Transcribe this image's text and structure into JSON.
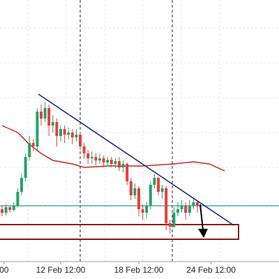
{
  "chart_data": {
    "type": "candlestick",
    "categories": [
      null,
      null,
      null,
      null,
      null,
      null,
      null,
      null,
      null,
      null,
      null,
      null,
      null,
      null,
      null,
      null,
      null,
      null,
      null,
      null,
      null,
      null,
      null,
      null,
      null,
      null,
      null,
      null,
      null,
      null,
      null,
      null,
      null,
      null,
      null,
      null,
      null,
      null,
      null,
      null,
      null,
      null,
      null,
      null,
      null,
      null,
      null,
      null,
      null,
      null,
      null
    ],
    "open": [
      75,
      70,
      78,
      74,
      80,
      100,
      120,
      150,
      170,
      165,
      215,
      205,
      220,
      195,
      200,
      180,
      190,
      182,
      185,
      178,
      182,
      165,
      155,
      148,
      150,
      145,
      148,
      142,
      146,
      140,
      144,
      135,
      140,
      115,
      95,
      105,
      75,
      70,
      80,
      110,
      120,
      100,
      105,
      55,
      50,
      70,
      75,
      80,
      70,
      80,
      85
    ],
    "close": [
      70,
      78,
      74,
      80,
      100,
      120,
      150,
      170,
      165,
      215,
      205,
      220,
      195,
      200,
      180,
      190,
      182,
      185,
      178,
      182,
      165,
      155,
      148,
      150,
      145,
      148,
      142,
      146,
      140,
      144,
      135,
      140,
      115,
      95,
      105,
      75,
      70,
      80,
      110,
      120,
      100,
      105,
      55,
      50,
      70,
      75,
      80,
      70,
      80,
      85,
      80
    ],
    "high": [
      80,
      82,
      80,
      85,
      105,
      125,
      155,
      180,
      175,
      220,
      225,
      228,
      225,
      210,
      205,
      195,
      195,
      192,
      190,
      190,
      185,
      170,
      160,
      158,
      155,
      155,
      152,
      150,
      150,
      148,
      150,
      145,
      142,
      120,
      112,
      108,
      82,
      85,
      115,
      125,
      122,
      110,
      108,
      60,
      78,
      85,
      88,
      85,
      88,
      90,
      88
    ],
    "low": [
      65,
      66,
      70,
      72,
      78,
      95,
      115,
      145,
      158,
      160,
      195,
      200,
      180,
      185,
      165,
      172,
      170,
      175,
      168,
      172,
      160,
      148,
      140,
      140,
      138,
      140,
      135,
      136,
      135,
      134,
      130,
      128,
      110,
      88,
      90,
      65,
      60,
      62,
      75,
      105,
      95,
      90,
      45,
      40,
      48,
      65,
      70,
      60,
      65,
      75,
      70
    ],
    "up_color": "#26a269",
    "down_color": "#e0413f",
    "ylim": [
      0,
      375
    ],
    "xticks": [
      {
        "value": 0.5,
        "label": "00"
      },
      {
        "value": 15,
        "label": "12 Feb 12:00"
      },
      {
        "value": 35,
        "label": "18 Feb 12:00"
      },
      {
        "value": 53.5,
        "label": "24 Feb 12:00"
      }
    ],
    "moving_average": {
      "color": "#c0282b",
      "x": [
        0,
        4,
        7,
        10,
        13,
        18,
        21,
        27,
        36,
        44,
        49,
        53,
        57
      ],
      "values": [
        195,
        185,
        168,
        155,
        145,
        140,
        135,
        137,
        137,
        140,
        143,
        140,
        130
      ]
    },
    "trendline": {
      "color": "#1a237e",
      "x": [
        9.3,
        59.3
      ],
      "values": [
        240,
        52
      ]
    },
    "horizontal_line": {
      "color": "#2a9d8f",
      "value": 80
    },
    "zone": {
      "color": "#8b1a1a",
      "values": [
        32,
        53
      ]
    }
  }
}
